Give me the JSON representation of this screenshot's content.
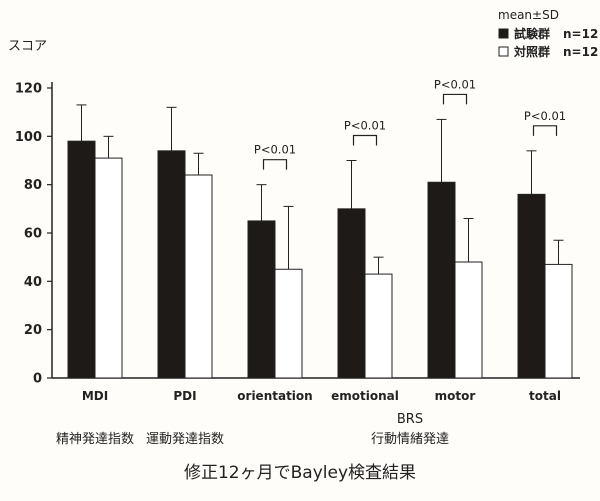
{
  "caption": "修正12ヶ月でBayley検査結果",
  "chart_data": {
    "type": "bar",
    "ylabel": "スコア",
    "ylim": [
      0,
      120
    ],
    "yticks": [
      0,
      20,
      40,
      60,
      80,
      100,
      120
    ],
    "legend": {
      "title": "mean±SD",
      "placement": "top-right",
      "entries": [
        {
          "name": "試験群",
          "n_label": "n=12",
          "color": "#1e1a17"
        },
        {
          "name": "対照群",
          "n_label": "n=12",
          "color": "#ffffff"
        }
      ]
    },
    "categories": [
      "MDI",
      "PDI",
      "orientation",
      "emotional",
      "motor",
      "total"
    ],
    "series": [
      {
        "name": "試験群",
        "values": [
          98,
          94,
          65,
          70,
          81,
          76
        ],
        "sd": [
          15,
          18,
          15,
          20,
          26,
          18
        ]
      },
      {
        "name": "対照群",
        "values": [
          91,
          84,
          45,
          43,
          48,
          47
        ],
        "sd": [
          9,
          9,
          26,
          7,
          18,
          10
        ]
      }
    ],
    "significance": [
      null,
      null,
      "P<0.01",
      "P<0.01",
      "P<0.01",
      "P<0.01"
    ],
    "groups": [
      {
        "label": "精神発達指数",
        "categories": [
          "MDI"
        ]
      },
      {
        "label": "運動発達指数",
        "categories": [
          "PDI"
        ]
      },
      {
        "label": "BRS",
        "sublabel": "行動情緒発達",
        "categories": [
          "orientation",
          "emotional",
          "motor",
          "total"
        ]
      }
    ]
  }
}
